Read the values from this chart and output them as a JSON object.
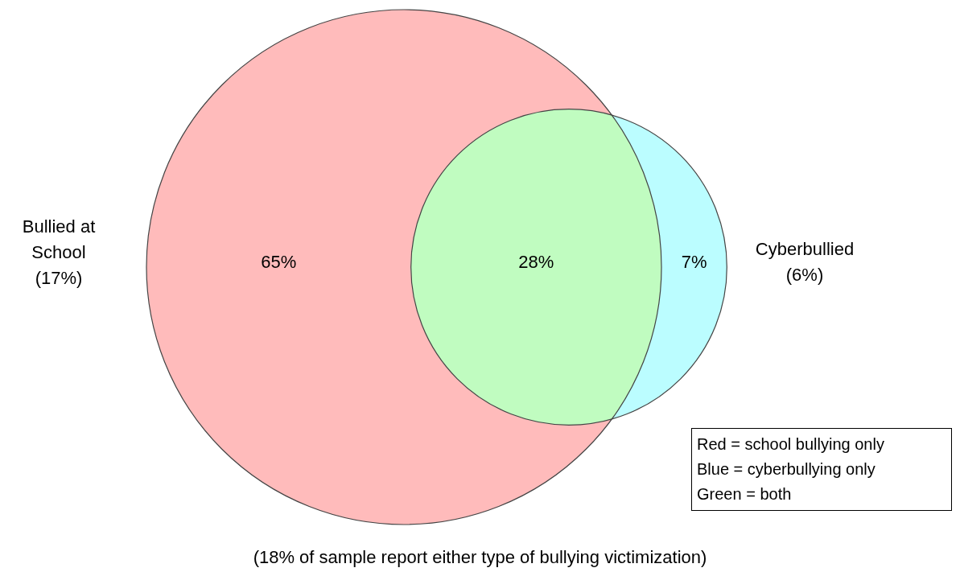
{
  "chart_data": {
    "type": "other",
    "categories": [
      null,
      null,
      null
    ],
    "values": [
      65,
      28,
      7
    ],
    "value_labels": [
      "65%",
      "28%",
      "7%"
    ],
    "colors": [
      "#ffbbbb",
      "#c0fcc0",
      "#bbfdff"
    ],
    "annotations": [
      "Bullied at School (17%)",
      "Cyberbullied (6%)",
      "Red = school bullying only",
      "Blue = cyberbullying only",
      "Green = both",
      "(18% of sample report either type of bullying victimization)"
    ]
  }
}
